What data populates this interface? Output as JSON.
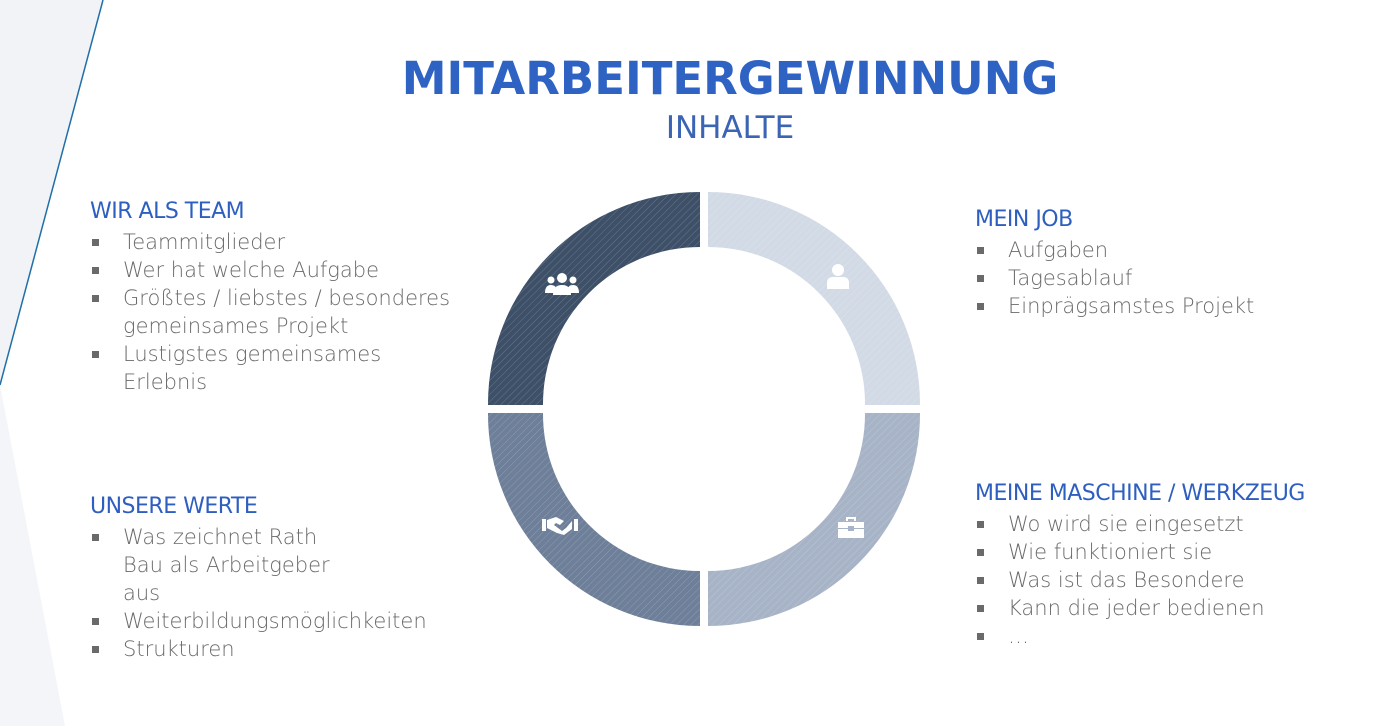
{
  "title": "MITARBEITERGEWINNUNG",
  "subtitle": "INHALTE",
  "colors": {
    "accent": "#2e63c4",
    "segment_team": "#3d5068",
    "segment_job": "#d2dae6",
    "segment_werte": "#6e7f99",
    "segment_maschine": "#a7b3c6",
    "text": "#6a6a6a"
  },
  "sections": {
    "team": {
      "heading": "WIR ALS TEAM",
      "icon": "group-icon",
      "items": [
        "Teammitglieder",
        "Wer hat welche Aufgabe",
        "Größtes / liebstes / besonderes gemeinsames Projekt",
        "Lustigstes gemeinsames Erlebnis"
      ]
    },
    "job": {
      "heading": "MEIN JOB",
      "icon": "person-icon",
      "items": [
        "Aufgaben",
        "Tagesablauf",
        "Einprägsamstes Projekt"
      ]
    },
    "werte": {
      "heading": "UNSERE WERTE",
      "icon": "handshake-icon",
      "items": [
        "Was zeichnet Rath Bau als Arbeitgeber aus",
        "Weiterbildungsmöglichkeiten",
        "Strukturen"
      ]
    },
    "maschine": {
      "heading": "MEINE MASCHINE / WERKZEUG",
      "icon": "toolbox-icon",
      "items": [
        "Wo wird sie eingesetzt",
        "Wie funktioniert sie",
        "Was ist das Besondere",
        "Kann die jeder bedienen",
        "…"
      ]
    }
  }
}
